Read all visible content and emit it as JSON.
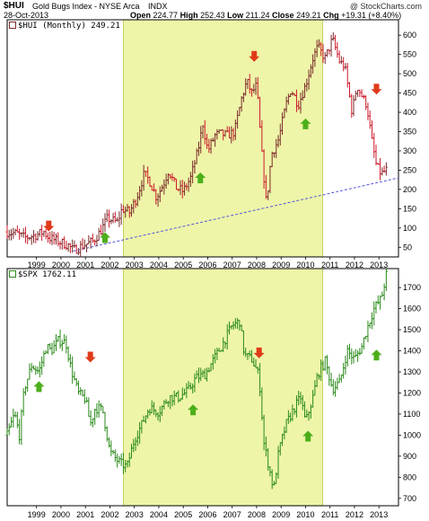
{
  "header": {
    "symbol": "$HUI",
    "name": "Gold Bugs Index - NYSE Arca",
    "exchange": "INDX",
    "date": "28-Oct-2013",
    "open_label": "Open",
    "open": "224.77",
    "high_label": "High",
    "high": "252.43",
    "low_label": "Low",
    "low": "211.24",
    "close_label": "Close",
    "close": "249.21",
    "chg_label": "Chg",
    "chg": "+19.31 (+8.40%)",
    "watermark": "@ StockCharts.com"
  },
  "colors": {
    "highlight": "#eef5a8",
    "hui_up": "#7a2a2a",
    "hui_down": "#cc1a2a",
    "spx_line": "#2a8a1a",
    "arrow_up": "#4caf1a",
    "arrow_down": "#e03a1a",
    "trendline": "#5555dd"
  },
  "chart_data": [
    {
      "type": "ohlc",
      "legend": "$HUI (Monthly) 249.21",
      "x_ticks": [
        "1999",
        "2000",
        "2001",
        "2002",
        "2003",
        "2004",
        "2005",
        "2006",
        "2007",
        "2008",
        "2009",
        "2010",
        "2011",
        "2012",
        "2013"
      ],
      "y_ticks": [
        50,
        100,
        150,
        200,
        250,
        300,
        350,
        400,
        450,
        500,
        550,
        600
      ],
      "ylim": [
        25,
        640
      ],
      "highlight_range": [
        2003.05,
        2011.2
      ],
      "trendline": {
        "from": [
          2001.0,
          40
        ],
        "to": [
          2014.3,
          230
        ],
        "style": "dashed"
      },
      "series_points": [
        [
          1998.3,
          90
        ],
        [
          1998.7,
          85
        ],
        [
          1999.0,
          75
        ],
        [
          1999.4,
          80
        ],
        [
          1999.8,
          90
        ],
        [
          2000.0,
          75
        ],
        [
          2000.4,
          65
        ],
        [
          2000.8,
          55
        ],
        [
          2001.0,
          42
        ],
        [
          2001.4,
          55
        ],
        [
          2001.8,
          65
        ],
        [
          2002.1,
          90
        ],
        [
          2002.4,
          125
        ],
        [
          2002.8,
          115
        ],
        [
          2003.0,
          150
        ],
        [
          2003.3,
          140
        ],
        [
          2003.6,
          180
        ],
        [
          2003.9,
          240
        ],
        [
          2004.1,
          225
        ],
        [
          2004.4,
          180
        ],
        [
          2004.7,
          215
        ],
        [
          2004.9,
          250
        ],
        [
          2005.2,
          205
        ],
        [
          2005.5,
          195
        ],
        [
          2005.8,
          230
        ],
        [
          2006.1,
          300
        ],
        [
          2006.3,
          370
        ],
        [
          2006.5,
          300
        ],
        [
          2006.8,
          340
        ],
        [
          2007.0,
          345
        ],
        [
          2007.3,
          340
        ],
        [
          2007.6,
          350
        ],
        [
          2007.9,
          440
        ],
        [
          2008.1,
          480
        ],
        [
          2008.3,
          450
        ],
        [
          2008.5,
          470
        ],
        [
          2008.7,
          300
        ],
        [
          2008.9,
          160
        ],
        [
          2009.1,
          290
        ],
        [
          2009.4,
          330
        ],
        [
          2009.7,
          420
        ],
        [
          2009.9,
          460
        ],
        [
          2010.2,
          420
        ],
        [
          2010.5,
          470
        ],
        [
          2010.8,
          540
        ],
        [
          2011.0,
          570
        ],
        [
          2011.3,
          540
        ],
        [
          2011.6,
          590
        ],
        [
          2011.9,
          530
        ],
        [
          2012.1,
          520
        ],
        [
          2012.4,
          400
        ],
        [
          2012.6,
          470
        ],
        [
          2012.9,
          430
        ],
        [
          2013.0,
          420
        ],
        [
          2013.2,
          330
        ],
        [
          2013.4,
          260
        ],
        [
          2013.6,
          240
        ],
        [
          2013.8,
          250
        ]
      ],
      "arrows": [
        {
          "dir": "down",
          "x": 2000.0,
          "y": 105
        },
        {
          "dir": "up",
          "x": 2002.3,
          "y": 75
        },
        {
          "dir": "up",
          "x": 2006.2,
          "y": 230
        },
        {
          "dir": "down",
          "x": 2008.4,
          "y": 545
        },
        {
          "dir": "up",
          "x": 2010.5,
          "y": 370
        },
        {
          "dir": "down",
          "x": 2013.4,
          "y": 460
        }
      ]
    },
    {
      "type": "ohlc",
      "legend": "$SPX 1762.11",
      "x_ticks": [
        "1999",
        "2000",
        "2001",
        "2002",
        "2003",
        "2004",
        "2005",
        "2006",
        "2007",
        "2008",
        "2009",
        "2010",
        "2011",
        "2012",
        "2013"
      ],
      "y_ticks": [
        700,
        800,
        900,
        1000,
        1100,
        1200,
        1300,
        1400,
        1500,
        1600,
        1700
      ],
      "ylim": [
        665,
        1790
      ],
      "highlight_range": [
        2003.05,
        2011.2
      ],
      "series_points": [
        [
          1998.3,
          1000
        ],
        [
          1998.6,
          1100
        ],
        [
          1998.8,
          1000
        ],
        [
          1999.0,
          1220
        ],
        [
          1999.3,
          1330
        ],
        [
          1999.6,
          1300
        ],
        [
          1999.9,
          1420
        ],
        [
          2000.1,
          1400
        ],
        [
          2000.4,
          1450
        ],
        [
          2000.7,
          1440
        ],
        [
          2000.9,
          1320
        ],
        [
          2001.2,
          1200
        ],
        [
          2001.5,
          1170
        ],
        [
          2001.7,
          1050
        ],
        [
          2001.9,
          1130
        ],
        [
          2002.2,
          1120
        ],
        [
          2002.5,
          920
        ],
        [
          2002.8,
          880
        ],
        [
          2003.0,
          860
        ],
        [
          2003.2,
          850
        ],
        [
          2003.5,
          980
        ],
        [
          2003.8,
          1050
        ],
        [
          2004.1,
          1130
        ],
        [
          2004.5,
          1110
        ],
        [
          2004.9,
          1180
        ],
        [
          2005.3,
          1180
        ],
        [
          2005.7,
          1210
        ],
        [
          2006.0,
          1270
        ],
        [
          2006.4,
          1290
        ],
        [
          2006.8,
          1370
        ],
        [
          2007.1,
          1430
        ],
        [
          2007.5,
          1520
        ],
        [
          2007.8,
          1540
        ],
        [
          2008.0,
          1380
        ],
        [
          2008.3,
          1360
        ],
        [
          2008.6,
          1280
        ],
        [
          2008.8,
          960
        ],
        [
          2009.0,
          850
        ],
        [
          2009.2,
          740
        ],
        [
          2009.4,
          920
        ],
        [
          2009.7,
          1050
        ],
        [
          2010.0,
          1120
        ],
        [
          2010.3,
          1180
        ],
        [
          2010.5,
          1060
        ],
        [
          2010.8,
          1180
        ],
        [
          2011.0,
          1290
        ],
        [
          2011.3,
          1350
        ],
        [
          2011.6,
          1220
        ],
        [
          2011.9,
          1250
        ],
        [
          2012.2,
          1400
        ],
        [
          2012.5,
          1360
        ],
        [
          2012.8,
          1420
        ],
        [
          2013.0,
          1500
        ],
        [
          2013.3,
          1600
        ],
        [
          2013.6,
          1650
        ],
        [
          2013.8,
          1760
        ]
      ],
      "arrows": [
        {
          "dir": "up",
          "x": 1999.6,
          "y": 1230
        },
        {
          "dir": "down",
          "x": 2001.7,
          "y": 1370
        },
        {
          "dir": "up",
          "x": 2005.9,
          "y": 1120
        },
        {
          "dir": "down",
          "x": 2008.6,
          "y": 1390
        },
        {
          "dir": "up",
          "x": 2010.6,
          "y": 995
        },
        {
          "dir": "up",
          "x": 2013.4,
          "y": 1380
        }
      ]
    }
  ]
}
